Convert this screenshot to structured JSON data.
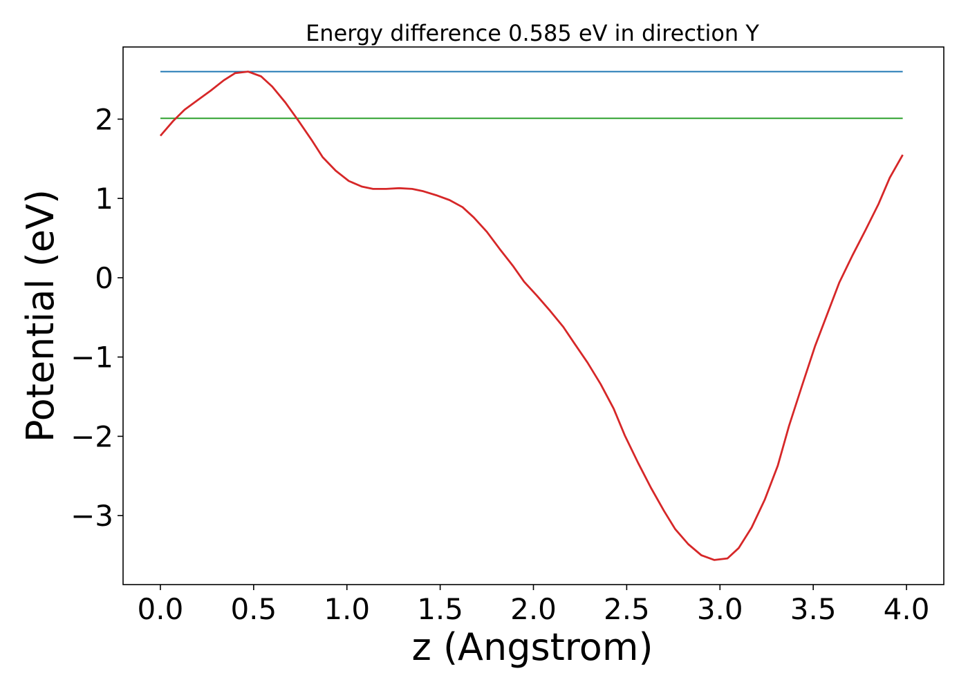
{
  "chart_data": {
    "type": "line",
    "title": "Energy difference 0.585 eV in direction Y",
    "xlabel": "z (Angstrom)",
    "ylabel": "Potential (eV)",
    "xlim": [
      -0.2,
      4.2
    ],
    "ylim": [
      -3.87,
      2.91
    ],
    "xticks": [
      0.0,
      0.5,
      1.0,
      1.5,
      2.0,
      2.5,
      3.0,
      3.5,
      4.0
    ],
    "xtick_labels": [
      "0.0",
      "0.5",
      "1.0",
      "1.5",
      "2.0",
      "2.5",
      "3.0",
      "3.5",
      "4.0"
    ],
    "yticks": [
      -3,
      -2,
      -1,
      0,
      1,
      2
    ],
    "ytick_labels": [
      "−3",
      "−2",
      "−1",
      "0",
      "1",
      "2"
    ],
    "grid": false,
    "series": [
      {
        "color": "#1f77b4",
        "x": [
          0.0,
          3.98
        ],
        "y": [
          2.6,
          2.6
        ]
      },
      {
        "color": "#2ca02c",
        "x": [
          0.0,
          3.98
        ],
        "y": [
          2.01,
          2.01
        ]
      },
      {
        "color": "#d62728",
        "x": [
          0.0,
          0.07,
          0.13,
          0.2,
          0.27,
          0.34,
          0.4,
          0.47,
          0.54,
          0.6,
          0.67,
          0.74,
          0.81,
          0.87,
          0.94,
          1.01,
          1.08,
          1.14,
          1.21,
          1.28,
          1.35,
          1.41,
          1.48,
          1.55,
          1.62,
          1.68,
          1.75,
          1.82,
          1.89,
          1.95,
          2.02,
          2.09,
          2.16,
          2.22,
          2.29,
          2.36,
          2.43,
          2.49,
          2.56,
          2.63,
          2.7,
          2.76,
          2.83,
          2.9,
          2.97,
          3.04,
          3.1,
          3.17,
          3.24,
          3.31,
          3.37,
          3.44,
          3.51,
          3.58,
          3.64,
          3.71,
          3.78,
          3.85,
          3.91,
          3.98
        ],
        "y": [
          1.79,
          1.98,
          2.12,
          2.24,
          2.36,
          2.49,
          2.58,
          2.6,
          2.54,
          2.41,
          2.21,
          1.98,
          1.74,
          1.52,
          1.35,
          1.22,
          1.15,
          1.12,
          1.12,
          1.13,
          1.12,
          1.09,
          1.04,
          0.98,
          0.89,
          0.76,
          0.58,
          0.36,
          0.15,
          -0.05,
          -0.23,
          -0.42,
          -0.62,
          -0.83,
          -1.07,
          -1.34,
          -1.65,
          -1.99,
          -2.33,
          -2.65,
          -2.94,
          -3.17,
          -3.36,
          -3.5,
          -3.56,
          -3.54,
          -3.41,
          -3.15,
          -2.8,
          -2.37,
          -1.87,
          -1.36,
          -0.86,
          -0.43,
          -0.06,
          0.28,
          0.6,
          0.93,
          1.26,
          1.55
        ]
      }
    ]
  }
}
